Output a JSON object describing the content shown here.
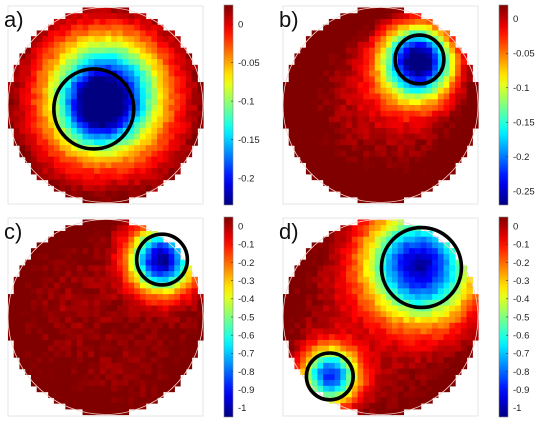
{
  "chart_data": [
    {
      "type": "heatmap",
      "panel_label": "a)",
      "colorbar": {
        "ticks": [
          "0",
          "-0.05",
          "-0.1",
          "-0.15",
          "-0.2"
        ],
        "range": [
          -0.235,
          0.025
        ]
      },
      "colormap": "jet",
      "highlights": [
        {
          "cx": 0.44,
          "cy": 0.52,
          "r": 0.205
        }
      ],
      "anomalies": [
        {
          "cx": 0.5,
          "cy": 0.45,
          "r": 0.34,
          "depth": 0.235
        },
        {
          "cx": 0.45,
          "cy": 0.55,
          "r": 0.2,
          "depth": 0.07
        }
      ],
      "base": 0.0,
      "edge": 0.03
    },
    {
      "type": "heatmap",
      "panel_label": "b)",
      "colorbar": {
        "ticks": [
          "0",
          "-0.05",
          "-0.1",
          "-0.15",
          "-0.2",
          "-0.25"
        ],
        "range": [
          -0.27,
          0.02
        ]
      },
      "colormap": "jet",
      "highlights": [
        {
          "cx": 0.7,
          "cy": 0.27,
          "r": 0.125
        }
      ],
      "anomalies": [
        {
          "cx": 0.7,
          "cy": 0.27,
          "r": 0.22,
          "depth": 0.28
        },
        {
          "cx": 0.66,
          "cy": 0.38,
          "r": 0.26,
          "depth": 0.05
        }
      ],
      "base": 0.01,
      "edge": 0.04
    },
    {
      "type": "heatmap",
      "panel_label": "c)",
      "colorbar": {
        "ticks": [
          "0",
          "-0.1",
          "-0.2",
          "-0.3",
          "-0.4",
          "-0.5",
          "-0.6",
          "-0.7",
          "-0.8",
          "-0.9",
          "-1"
        ],
        "range": [
          -1.05,
          0.05
        ]
      },
      "colormap": "jet",
      "highlights": [
        {
          "cx": 0.79,
          "cy": 0.21,
          "r": 0.13
        }
      ],
      "anomalies": [
        {
          "cx": 0.79,
          "cy": 0.21,
          "r": 0.2,
          "depth": 1.1
        }
      ],
      "base": 0.03,
      "edge": 0.05
    },
    {
      "type": "heatmap",
      "panel_label": "d)",
      "colorbar": {
        "ticks": [
          "0",
          "-0.1",
          "-0.2",
          "-0.3",
          "-0.4",
          "-0.5",
          "-0.6",
          "-0.7",
          "-0.8",
          "-0.9",
          "-1"
        ],
        "range": [
          -1.05,
          0.05
        ]
      },
      "colormap": "jet",
      "highlights": [
        {
          "cx": 0.71,
          "cy": 0.25,
          "r": 0.205
        },
        {
          "cx": 0.24,
          "cy": 0.8,
          "r": 0.12
        }
      ],
      "anomalies": [
        {
          "cx": 0.7,
          "cy": 0.24,
          "r": 0.34,
          "depth": 1.05
        },
        {
          "cx": 0.24,
          "cy": 0.8,
          "r": 0.18,
          "depth": 0.95
        }
      ],
      "base": 0.03,
      "edge": 0.05
    }
  ]
}
